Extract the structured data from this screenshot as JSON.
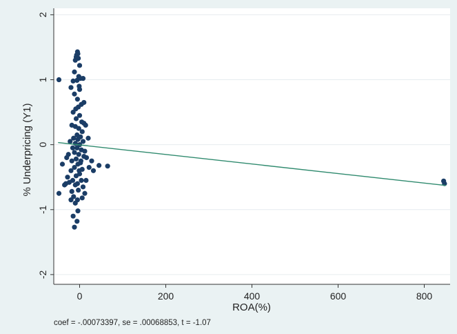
{
  "chart_data": {
    "type": "scatter",
    "xlabel": "ROA(%)",
    "ylabel": "% Underpricing (Y1)",
    "xlim": [
      -60,
      860
    ],
    "ylim": [
      -2.15,
      2.1
    ],
    "xticks": [
      0,
      200,
      400,
      600,
      800
    ],
    "yticks": [
      -2,
      -1,
      0,
      1,
      2
    ],
    "grid": "horizontal",
    "note": "coef = -.00073397, se = .00068853, t = -1.07",
    "fit_line": {
      "x": [
        -50,
        850
      ],
      "y": [
        0.033,
        -0.628
      ]
    },
    "points": [
      [
        -5,
        1.43
      ],
      [
        -4,
        1.4
      ],
      [
        -7,
        1.38
      ],
      [
        -10,
        1.3
      ],
      [
        -3,
        1.33
      ],
      [
        -8,
        1.35
      ],
      [
        0,
        1.22
      ],
      [
        -12,
        1.12
      ],
      [
        -2,
        1.05
      ],
      [
        2,
        1.02
      ],
      [
        8,
        1.02
      ],
      [
        -6,
        0.99
      ],
      [
        -15,
        0.98
      ],
      [
        -1,
        0.9
      ],
      [
        -20,
        0.88
      ],
      [
        -12,
        0.78
      ],
      [
        -5,
        0.7
      ],
      [
        4,
        0.62
      ],
      [
        10,
        0.65
      ],
      [
        -3,
        0.58
      ],
      [
        -15,
        0.5
      ],
      [
        0,
        0.45
      ],
      [
        -8,
        0.4
      ],
      [
        5,
        0.35
      ],
      [
        10,
        0.33
      ],
      [
        -18,
        0.3
      ],
      [
        -10,
        0.28
      ],
      [
        -2,
        0.25
      ],
      [
        6,
        0.2
      ],
      [
        -6,
        0.15
      ],
      [
        2,
        0.12
      ],
      [
        -14,
        0.1
      ],
      [
        -22,
        0.05
      ],
      [
        -4,
        0.08
      ],
      [
        8,
        0.05
      ],
      [
        -10,
        0.02
      ],
      [
        0,
        0.0
      ],
      [
        -16,
        -0.05
      ],
      [
        -6,
        -0.05
      ],
      [
        4,
        -0.08
      ],
      [
        -26,
        -0.15
      ],
      [
        -12,
        -0.12
      ],
      [
        -2,
        -0.15
      ],
      [
        10,
        -0.18
      ],
      [
        -8,
        -0.22
      ],
      [
        -18,
        -0.25
      ],
      [
        2,
        -0.28
      ],
      [
        -30,
        -0.2
      ],
      [
        -4,
        -0.3
      ],
      [
        -12,
        -0.35
      ],
      [
        6,
        -0.38
      ],
      [
        -20,
        -0.4
      ],
      [
        0,
        -0.45
      ],
      [
        -8,
        -0.48
      ],
      [
        -16,
        -0.55
      ],
      [
        4,
        -0.55
      ],
      [
        -24,
        -0.58
      ],
      [
        -10,
        -0.62
      ],
      [
        8,
        -0.65
      ],
      [
        -3,
        -0.7
      ],
      [
        -18,
        -0.72
      ],
      [
        -28,
        -0.5
      ],
      [
        -14,
        -0.8
      ],
      [
        -5,
        -0.85
      ],
      [
        6,
        -0.82
      ],
      [
        -10,
        -0.9
      ],
      [
        -20,
        -0.85
      ],
      [
        -4,
        -1.02
      ],
      [
        -15,
        -1.1
      ],
      [
        -6,
        -1.18
      ],
      [
        -12,
        -1.27
      ],
      [
        12,
        -0.1
      ],
      [
        16,
        -0.2
      ],
      [
        22,
        -0.35
      ],
      [
        15,
        -0.55
      ],
      [
        12,
        -0.75
      ],
      [
        28,
        -0.25
      ],
      [
        32,
        -0.4
      ],
      [
        45,
        -0.32
      ],
      [
        65,
        -0.33
      ],
      [
        -48,
        1.0
      ],
      [
        -48,
        -0.75
      ],
      [
        -35,
        -0.62
      ],
      [
        -40,
        -0.3
      ],
      [
        -32,
        -0.6
      ],
      [
        20,
        0.1
      ],
      [
        14,
        0.3
      ],
      [
        -5,
        -0.6
      ],
      [
        -1,
        -0.4
      ],
      [
        3,
        -0.25
      ],
      [
        -9,
        0.55
      ],
      [
        0,
        0.85
      ],
      [
        845,
        -0.56
      ],
      [
        847,
        -0.6
      ]
    ]
  }
}
